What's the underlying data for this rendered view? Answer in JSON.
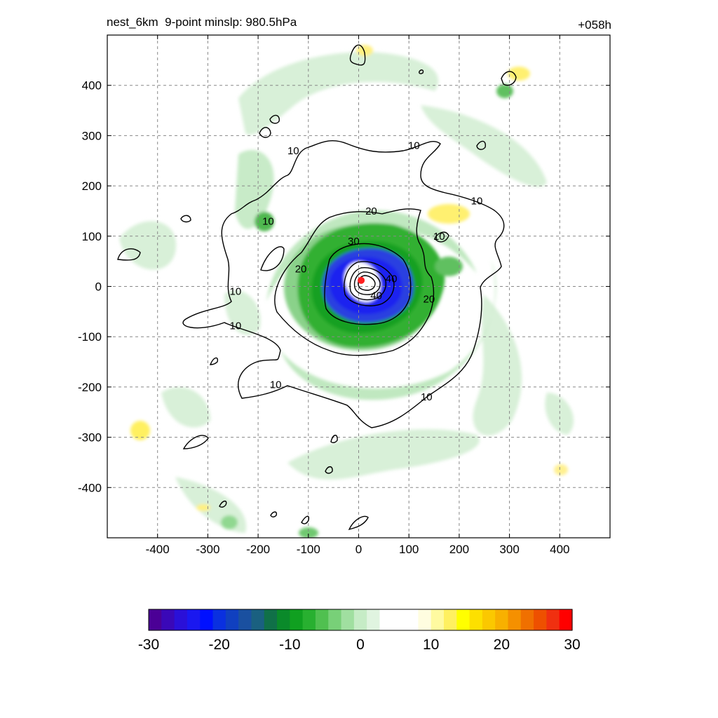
{
  "title_left": "nest_6km  9-point minslp: 980.5hPa",
  "title_right": "+058h",
  "chart_data": {
    "type": "heatmap",
    "title": "nest_6km  9-point minslp: 980.5hPa",
    "forecast_time": "+058h",
    "xlim": [
      -500,
      500
    ],
    "ylim": [
      -500,
      500
    ],
    "x_ticks": [
      -400,
      -300,
      -200,
      -100,
      0,
      100,
      200,
      300,
      400
    ],
    "y_ticks": [
      400,
      300,
      200,
      100,
      0,
      -100,
      -200,
      -300,
      -400
    ],
    "grid": true,
    "center_marker": {
      "x": 5,
      "y": 12,
      "color": "#ff2020"
    },
    "contour_levels": [
      10,
      20,
      30,
      40
    ],
    "contour_labels": [
      {
        "text": "10",
        "x": -130,
        "y": 270
      },
      {
        "text": "10",
        "x": 110,
        "y": 280
      },
      {
        "text": "10",
        "x": 235,
        "y": 170
      },
      {
        "text": "10",
        "x": -180,
        "y": 130
      },
      {
        "text": "10",
        "x": 160,
        "y": 100
      },
      {
        "text": "10",
        "x": -245,
        "y": -10
      },
      {
        "text": "10",
        "x": -245,
        "y": -78
      },
      {
        "text": "10",
        "x": -165,
        "y": -195
      },
      {
        "text": "10",
        "x": 135,
        "y": -220
      },
      {
        "text": "20",
        "x": 25,
        "y": 150
      },
      {
        "text": "20",
        "x": -115,
        "y": 35
      },
      {
        "text": "20",
        "x": 140,
        "y": -25
      },
      {
        "text": "30",
        "x": -10,
        "y": 90
      },
      {
        "text": "40",
        "x": 65,
        "y": 15
      },
      {
        "text": "40",
        "x": 35,
        "y": -18
      }
    ],
    "colorbar": {
      "min": -30,
      "max": 30,
      "ticks": [
        -30,
        -20,
        -10,
        0,
        10,
        20,
        30
      ],
      "colors": [
        "#4b0096",
        "#3a08b8",
        "#2a10d8",
        "#1a18f0",
        "#0010ff",
        "#0a30e0",
        "#1040c0",
        "#1a50a0",
        "#1a6080",
        "#107048",
        "#0a8a2a",
        "#10a020",
        "#28b030",
        "#50c050",
        "#78d078",
        "#a0dfa0",
        "#c6ecc6",
        "#e0f4e0",
        "#ffffff",
        "#ffffff",
        "#ffffff",
        "#fffde0",
        "#fffaa0",
        "#fff060",
        "#ffff00",
        "#fde000",
        "#fbc800",
        "#f8b000",
        "#f59000",
        "#f07000",
        "#ee5000",
        "#f03010",
        "#ff0000"
      ]
    }
  }
}
